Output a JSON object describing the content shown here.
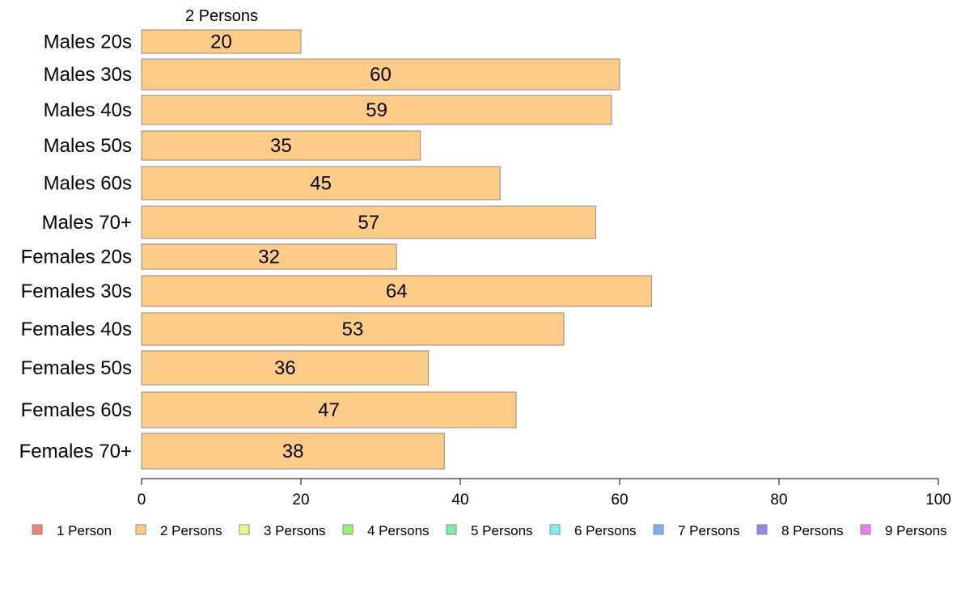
{
  "chart_data": {
    "type": "bar",
    "orientation": "horizontal",
    "top_label": "2 Persons",
    "categories": [
      "Males 20s",
      "Males 30s",
      "Males 40s",
      "Males 50s",
      "Males 60s",
      "Males 70+",
      "Females 20s",
      "Females 30s",
      "Females 40s",
      "Females 50s",
      "Females 60s",
      "Females 70+"
    ],
    "series": [
      {
        "name": "2 Persons",
        "color": "#FFCC88",
        "values": [
          20,
          60,
          59,
          35,
          45,
          57,
          32,
          64,
          53,
          36,
          47,
          38
        ]
      }
    ],
    "xlim": [
      0,
      100
    ],
    "xticks": [
      0,
      20,
      40,
      60,
      80,
      100
    ],
    "grid": false,
    "legend_position": "bottom",
    "legend": [
      {
        "label": "1 Person",
        "color": "#F28080"
      },
      {
        "label": "2 Persons",
        "color": "#FFCC88"
      },
      {
        "label": "3 Persons",
        "color": "#EEF588"
      },
      {
        "label": "4 Persons",
        "color": "#9BF07A"
      },
      {
        "label": "5 Persons",
        "color": "#7DEEAA"
      },
      {
        "label": "6 Persons",
        "color": "#7AF5F0"
      },
      {
        "label": "7 Persons",
        "color": "#7FAEF0"
      },
      {
        "label": "8 Persons",
        "color": "#9A84EE"
      },
      {
        "label": "9 Persons",
        "color": "#F07AF0"
      }
    ]
  }
}
